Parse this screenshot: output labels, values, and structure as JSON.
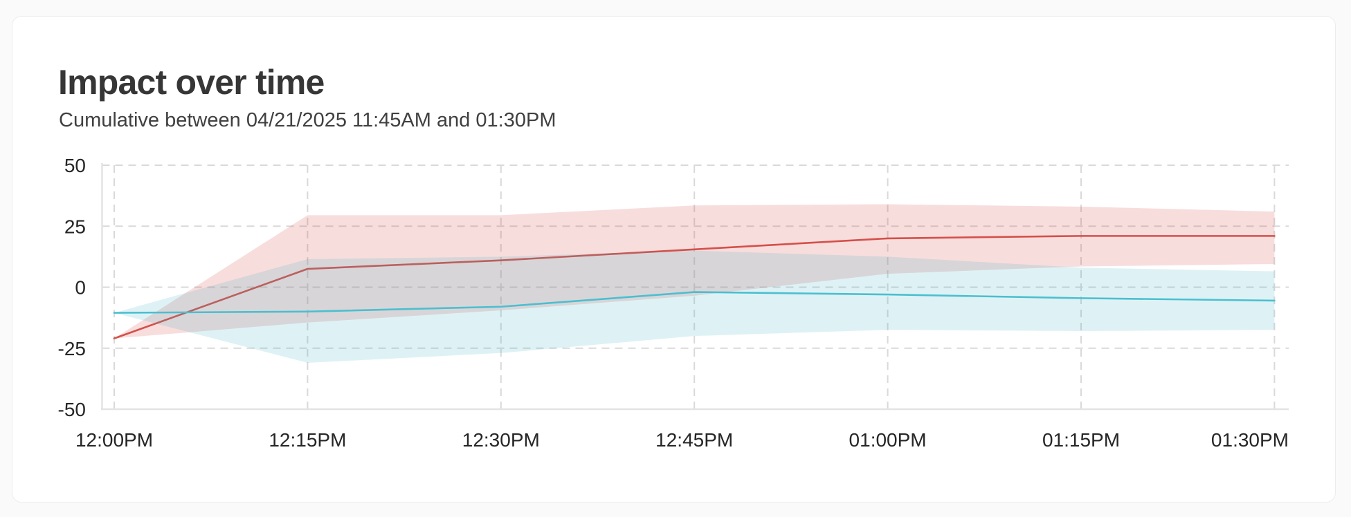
{
  "header": {
    "title": "Impact over time",
    "subtitle": "Cumulative between 04/21/2025 11:45AM and 01:30PM"
  },
  "chart_data": {
    "type": "line",
    "title": "Impact over time",
    "subtitle": "Cumulative between 04/21/2025 11:45AM and 01:30PM",
    "x_labels": [
      "12:00PM",
      "12:15PM",
      "12:30PM",
      "12:45PM",
      "01:00PM",
      "01:15PM",
      "01:30PM"
    ],
    "y_ticks": [
      50,
      25,
      0,
      -25,
      -50
    ],
    "ylim": [
      -50,
      50
    ],
    "grid": "dashed",
    "legend": "none",
    "colors": {
      "grid_dash": "#d9d9d9",
      "axis_border": "#e3e3e3",
      "tick_label": "#262626"
    },
    "series": [
      {
        "name": "red",
        "line_color": "#d4504a",
        "band_color": "rgba(214,69,64,0.18)",
        "values": [
          -21,
          7.5,
          11,
          15.5,
          20,
          21,
          21
        ],
        "band_upper": [
          -21,
          29.5,
          29.5,
          33.5,
          34,
          33,
          31
        ],
        "band_lower": [
          -21,
          -14.5,
          -9.5,
          -3.5,
          5.5,
          8.5,
          9.5
        ]
      },
      {
        "name": "teal",
        "line_color": "#4bbfcf",
        "band_color": "rgba(59,178,196,0.17)",
        "values": [
          -10.5,
          -10,
          -8,
          -2,
          -3,
          -4.5,
          -5.5
        ],
        "band_upper": [
          -10.5,
          11.5,
          12.5,
          15,
          12.5,
          8,
          6.5
        ],
        "band_lower": [
          -10.5,
          -31,
          -27,
          -20,
          -17.5,
          -18,
          -17.5
        ]
      }
    ]
  }
}
